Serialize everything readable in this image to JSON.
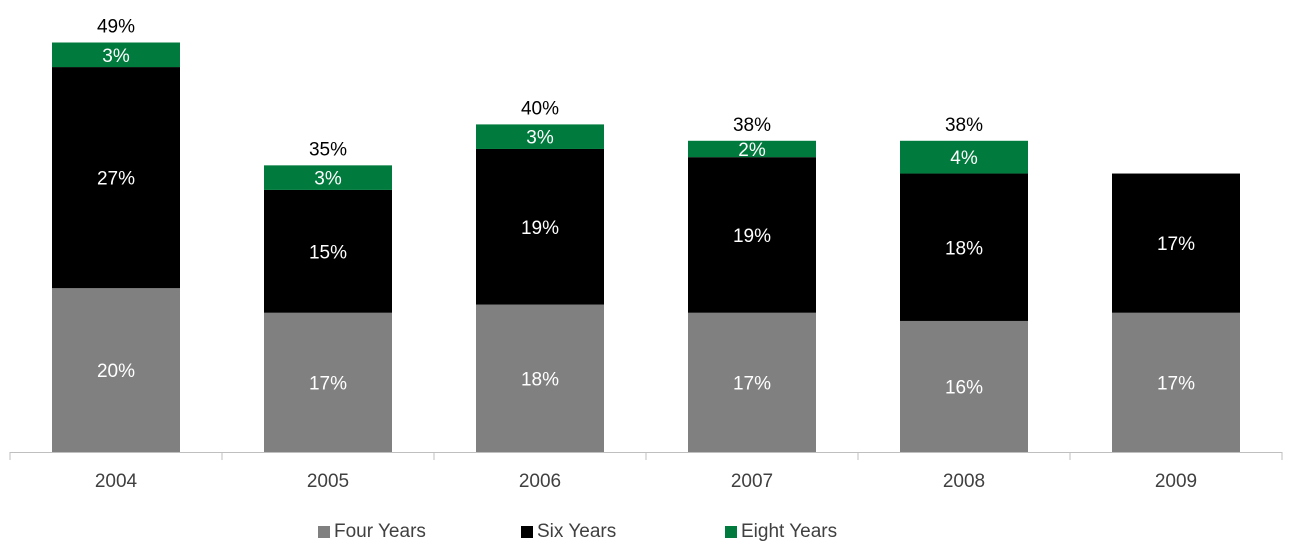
{
  "chart_data": {
    "type": "bar",
    "stacked": true,
    "categories": [
      "2004",
      "2005",
      "2006",
      "2007",
      "2008",
      "2009"
    ],
    "series": [
      {
        "name": "Four Years",
        "color": "#808080",
        "values": [
          20,
          17,
          18,
          17,
          16,
          17
        ],
        "labels": [
          "20%",
          "17%",
          "18%",
          "17%",
          "16%",
          "17%"
        ]
      },
      {
        "name": "Six Years",
        "color": "#000000",
        "values": [
          27,
          15,
          19,
          19,
          18,
          17
        ],
        "labels": [
          "27%",
          "15%",
          "19%",
          "19%",
          "18%",
          "17%"
        ]
      },
      {
        "name": "Eight Years",
        "color": "#007A3D",
        "values": [
          3,
          3,
          3,
          2,
          4,
          null
        ],
        "labels": [
          "3%",
          "3%",
          "3%",
          "2%",
          "4%",
          null
        ]
      }
    ],
    "totals": [
      "49%",
      "35%",
      "40%",
      "38%",
      "38%",
      null
    ],
    "ylim": [
      0,
      50
    ],
    "grid": false,
    "legend_position": "bottom"
  }
}
